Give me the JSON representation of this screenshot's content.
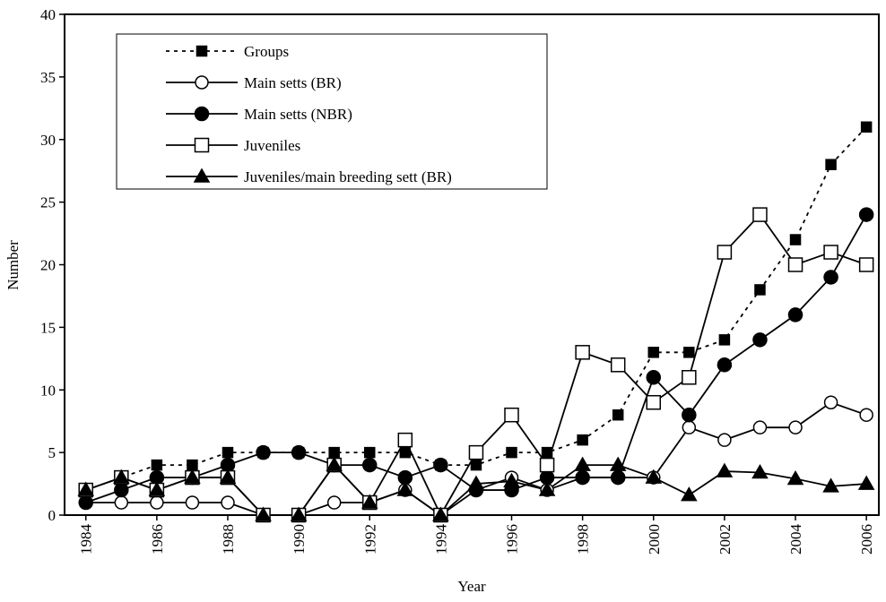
{
  "chart_data": {
    "type": "line",
    "x_label": "Year",
    "y_label": "Number",
    "x": [
      1984,
      1985,
      1986,
      1987,
      1988,
      1989,
      1990,
      1991,
      1992,
      1993,
      1994,
      1995,
      1996,
      1997,
      1998,
      1999,
      2000,
      2001,
      2002,
      2003,
      2004,
      2005,
      2006
    ],
    "xlim": [
      1983.4,
      2006.35
    ],
    "xticks": [
      1984,
      1986,
      1988,
      1990,
      1992,
      1994,
      1996,
      1998,
      2000,
      2002,
      2004,
      2006
    ],
    "ylim": [
      0,
      40
    ],
    "yticks": [
      0,
      5,
      10,
      15,
      20,
      25,
      30,
      35,
      40
    ],
    "grid": false,
    "legend": "upper-left",
    "series": [
      {
        "name": "Groups",
        "color": "#000000",
        "marker": "square-filled",
        "dashed": true,
        "values": [
          2,
          3,
          4,
          4,
          5,
          5,
          5,
          5,
          5,
          5,
          4,
          4,
          5,
          5,
          6,
          8,
          13,
          13,
          14,
          18,
          22,
          28,
          31
        ]
      },
      {
        "name": "Main setts (BR)",
        "color": "#000000",
        "marker": "circle-open",
        "dashed": false,
        "values": [
          1,
          1,
          1,
          1,
          1,
          0,
          0,
          1,
          1,
          2,
          0,
          2,
          3,
          2,
          3,
          3,
          3,
          7,
          6,
          7,
          7,
          9,
          8
        ]
      },
      {
        "name": "Main setts (NBR)",
        "color": "#000000",
        "marker": "circle-filled",
        "dashed": false,
        "values": [
          1,
          2,
          3,
          3,
          4,
          5,
          5,
          4,
          4,
          3,
          4,
          2,
          2,
          3,
          3,
          3,
          11,
          8,
          12,
          14,
          16,
          19,
          24
        ]
      },
      {
        "name": "Juveniles",
        "color": "#000000",
        "marker": "square-open",
        "dashed": false,
        "values": [
          2,
          3,
          2,
          3,
          3,
          0,
          0,
          4,
          1,
          6,
          0,
          5,
          8,
          4,
          13,
          12,
          9,
          11,
          21,
          24,
          20,
          21,
          20
        ]
      },
      {
        "name": "Juveniles/main breeding sett (BR)",
        "color": "#000000",
        "marker": "triangle-filled",
        "dashed": false,
        "values": [
          2,
          3,
          2,
          3,
          3,
          0,
          0,
          4,
          1,
          2,
          0,
          2.5,
          2.7,
          2,
          4,
          4,
          3,
          1.6,
          3.5,
          3.4,
          2.9,
          2.3,
          2.5
        ]
      }
    ]
  }
}
